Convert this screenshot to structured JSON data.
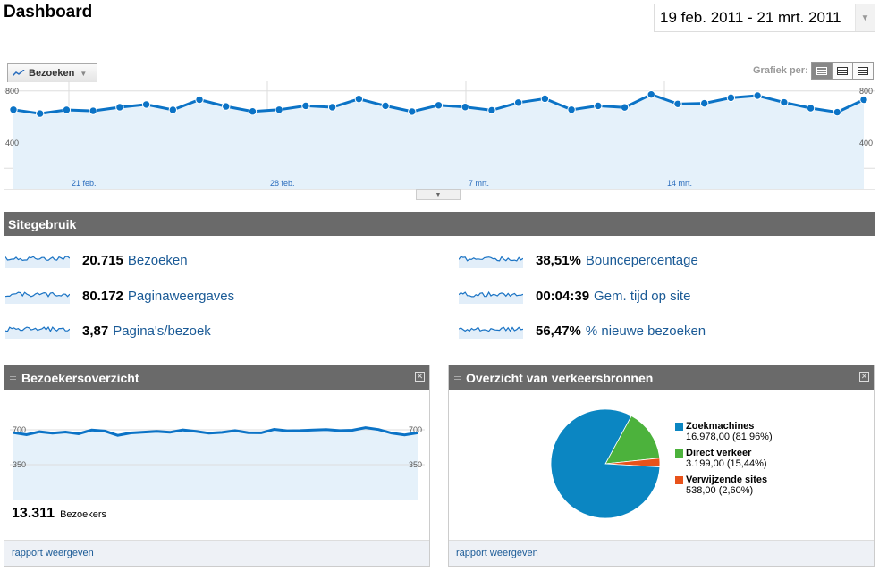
{
  "page": {
    "title": "Dashboard"
  },
  "date_range": {
    "value": "19 feb. 2011 - 21 mrt. 2011"
  },
  "main_chart": {
    "metric_selector": "Bezoeken",
    "grafiek_label": "Grafiek per:",
    "y_tick_high": "800",
    "y_tick_low": "400",
    "x_ticks": [
      "21 feb.",
      "28 feb.",
      "7 mrt.",
      "14 mrt."
    ]
  },
  "section": {
    "title": "Sitegebruik"
  },
  "stats": [
    {
      "value": "20.715",
      "label": "Bezoeken"
    },
    {
      "value": "80.172",
      "label": "Paginaweergaves"
    },
    {
      "value": "3,87",
      "label": "Pagina's/bezoek"
    },
    {
      "value": "38,51%",
      "label": "Bouncepercentage"
    },
    {
      "value": "00:04:39",
      "label": "Gem. tijd op site"
    },
    {
      "value": "56,47%",
      "label": "% nieuwe bezoeken"
    }
  ],
  "visitors_panel": {
    "title": "Bezoekersoverzicht",
    "y_tick_high": "700",
    "y_tick_low": "350",
    "total_value": "13.311",
    "total_label": "Bezoekers",
    "footer_link": "rapport weergeven"
  },
  "traffic_panel": {
    "title": "Overzicht van verkeersbronnen",
    "footer_link": "rapport weergeven",
    "sources": [
      {
        "name": "Zoekmachines",
        "value": "16.978,00 (81,96%)",
        "color": "#0b86c2"
      },
      {
        "name": "Direct verkeer",
        "value": "3.199,00 (15,44%)",
        "color": "#4cb23c"
      },
      {
        "name": "Verwijzende sites",
        "value": "538,00 (2,60%)",
        "color": "#e8521a"
      }
    ]
  },
  "chart_data": [
    {
      "type": "area",
      "series": [
        {
          "name": "Bezoeken",
          "values": [
            703,
            683,
            702,
            697,
            716,
            730,
            702,
            755,
            720,
            694,
            703,
            723,
            716,
            759,
            723,
            693,
            726,
            717,
            700,
            740,
            760,
            703,
            723,
            715,
            782,
            733,
            736,
            765,
            776,
            741,
            711,
            690,
            755
          ]
        }
      ],
      "ylim": [
        290,
        850
      ],
      "y_ticks": [
        400,
        800
      ],
      "x_labels": [
        "21 feb.",
        "28 feb.",
        "7 mrt.",
        "14 mrt."
      ]
    },
    {
      "type": "area",
      "series": [
        {
          "name": "Bezoekers",
          "values": [
            662,
            646,
            668,
            657,
            666,
            653,
            680,
            673,
            642,
            659,
            665,
            671,
            664,
            681,
            670,
            657,
            663,
            676,
            661,
            660,
            685,
            675,
            676,
            680,
            683,
            676,
            679,
            697,
            684,
            658,
            645,
            660
          ]
        }
      ],
      "ylim": [
        175,
        760
      ],
      "y_ticks": [
        350,
        700
      ]
    },
    {
      "type": "pie",
      "categories": [
        "Zoekmachines",
        "Direct verkeer",
        "Verwijzende sites"
      ],
      "values": [
        81.96,
        15.44,
        2.6
      ]
    }
  ]
}
